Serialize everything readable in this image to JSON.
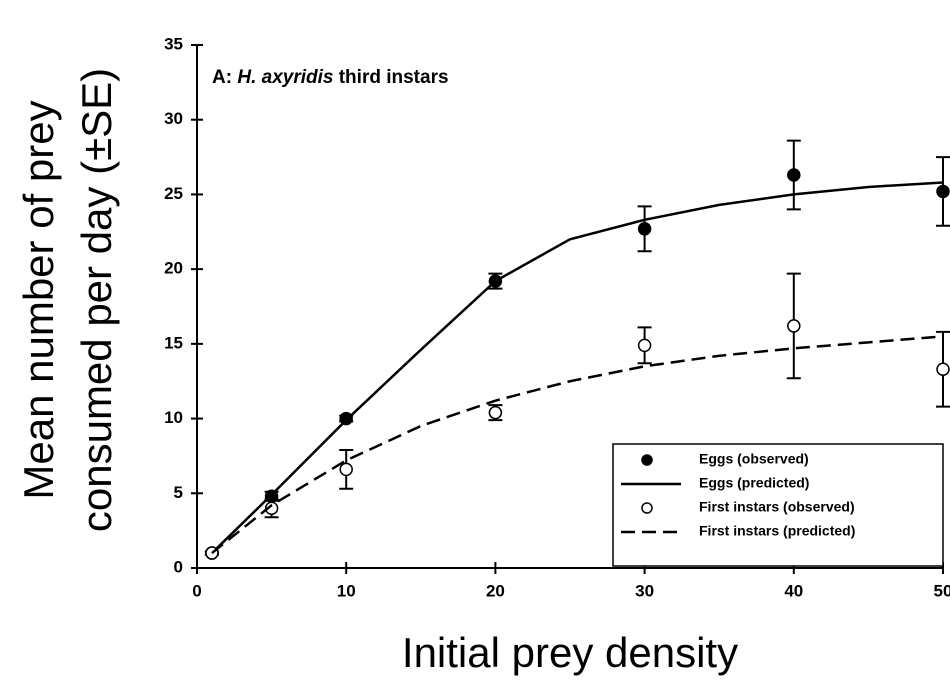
{
  "chart_data": {
    "type": "line",
    "annotation": {
      "prefix": "A:",
      "species": "H. axyridis",
      "suffix": "third instars"
    },
    "ylabel": [
      "Mean number of prey",
      "consumed per day (±SE)"
    ],
    "xlabel": "Initial prey density",
    "xlim": [
      0,
      50
    ],
    "xticks": [
      0,
      10,
      20,
      30,
      40,
      50
    ],
    "ylim": [
      0,
      35
    ],
    "yticks": [
      0,
      5,
      10,
      15,
      20,
      25,
      30,
      35
    ],
    "legend": "lower right",
    "series": [
      {
        "name": "Eggs (observed)",
        "color": "#000000",
        "marker": "filled",
        "x": [
          1,
          5,
          10,
          20,
          30,
          40,
          50
        ],
        "values": [
          1.0,
          4.8,
          10.0,
          19.2,
          22.7,
          26.3,
          25.2
        ],
        "errors": [
          0.1,
          0.3,
          0.2,
          0.5,
          1.5,
          2.3,
          2.3
        ]
      },
      {
        "name": "Eggs (predicted)",
        "color": "#000000",
        "dash": "solid",
        "x": [
          1,
          5,
          10,
          15,
          20,
          25,
          30,
          35,
          40,
          45,
          50
        ],
        "values": [
          1.0,
          4.9,
          9.9,
          14.6,
          19.2,
          22.0,
          23.3,
          24.3,
          25.0,
          25.5,
          25.8
        ]
      },
      {
        "name": "First instars (observed)",
        "color": "#000000",
        "marker": "open",
        "x": [
          1,
          5,
          10,
          20,
          30,
          40,
          50
        ],
        "values": [
          1.0,
          4.0,
          6.6,
          10.4,
          14.9,
          16.2,
          13.3
        ],
        "errors": [
          0.1,
          0.6,
          1.3,
          0.5,
          1.2,
          3.5,
          2.5
        ]
      },
      {
        "name": "First instars (predicted)",
        "color": "#000000",
        "dash": "dashed",
        "x": [
          1,
          5,
          10,
          15,
          20,
          25,
          30,
          35,
          40,
          45,
          50
        ],
        "values": [
          1.0,
          4.2,
          7.2,
          9.5,
          11.2,
          12.5,
          13.5,
          14.2,
          14.7,
          15.1,
          15.5
        ]
      }
    ]
  }
}
